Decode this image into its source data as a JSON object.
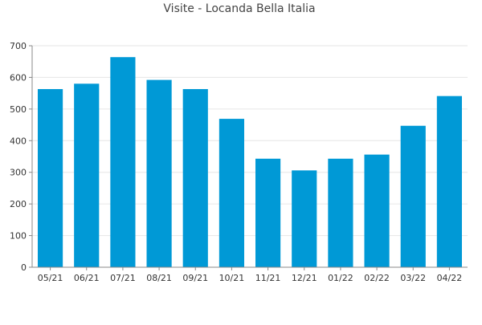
{
  "chart_data": {
    "type": "bar",
    "title": "Visite - Locanda Bella Italia",
    "categories": [
      "05/21",
      "06/21",
      "07/21",
      "08/21",
      "09/21",
      "10/21",
      "11/21",
      "12/21",
      "01/22",
      "02/22",
      "03/22",
      "04/22"
    ],
    "values": [
      563,
      580,
      664,
      592,
      563,
      469,
      343,
      306,
      343,
      356,
      447,
      541
    ],
    "ylim": [
      0,
      700
    ],
    "yticks": [
      0,
      100,
      200,
      300,
      400,
      500,
      600,
      700
    ],
    "bar_color": "#0099d6",
    "grid": true,
    "legend": "none"
  }
}
